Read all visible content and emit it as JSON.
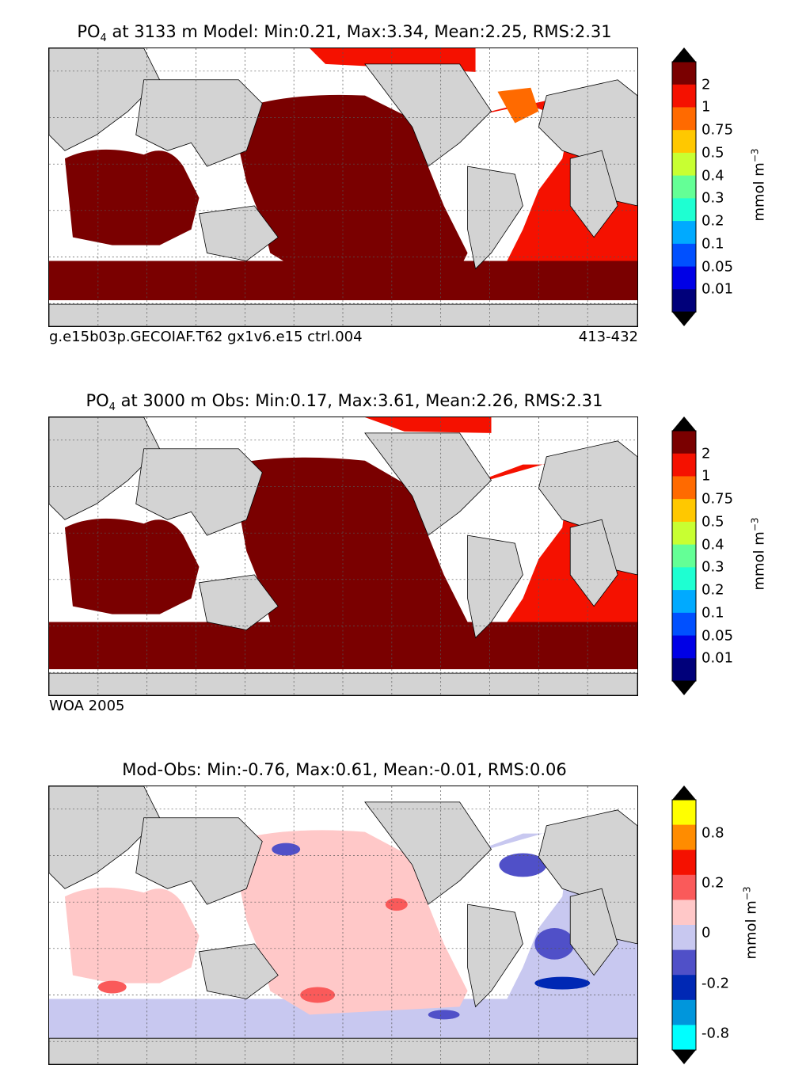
{
  "panels": [
    {
      "id": "model",
      "title_prefix": "PO",
      "title_sub": "4",
      "title_rest": " at 3133 m Model: Min:0.21, Max:3.34, Mean:2.25, RMS:2.31",
      "footer_left": "g.e15b03p.GECOIAF.T62 gx1v6.e15 ctrl.004",
      "footer_right": "413-432",
      "colorbar": {
        "labels": [
          "2",
          "1",
          "0.75",
          "0.5",
          "0.4",
          "0.3",
          "0.2",
          "0.1",
          "0.05",
          "0.01"
        ],
        "colors": [
          "#7a0000",
          "#f51100",
          "#ff6a00",
          "#ffc800",
          "#c8ff32",
          "#64ff96",
          "#1effd2",
          "#00aaff",
          "#0050ff",
          "#0000e6",
          "#00007a"
        ],
        "unit": "mmol m",
        "unit_exp": "−3"
      }
    },
    {
      "id": "obs",
      "title_prefix": "PO",
      "title_sub": "4",
      "title_rest": " at 3000 m Obs: Min:0.17, Max:3.61, Mean:2.26, RMS:2.31",
      "footer_left": "WOA 2005",
      "footer_right": "",
      "colorbar": {
        "labels": [
          "2",
          "1",
          "0.75",
          "0.5",
          "0.4",
          "0.3",
          "0.2",
          "0.1",
          "0.05",
          "0.01"
        ],
        "colors": [
          "#7a0000",
          "#f51100",
          "#ff6a00",
          "#ffc800",
          "#c8ff32",
          "#64ff96",
          "#1effd2",
          "#00aaff",
          "#0050ff",
          "#0000e6",
          "#00007a"
        ],
        "unit": "mmol m",
        "unit_exp": "−3"
      }
    },
    {
      "id": "diff",
      "title_prefix": "Mod-Obs: Min:-0.76, Max:0.61, Mean:-0.01, RMS:0.06",
      "title_sub": "",
      "title_rest": "",
      "footer_left": "",
      "footer_right": "",
      "colorbar": {
        "labels": [
          "0.8",
          "0.2",
          "0",
          "-0.2",
          "-0.8"
        ],
        "label_positions": [
          0.133,
          0.333,
          0.533,
          0.733,
          0.933
        ],
        "colors": [
          "#ffff00",
          "#ff8c00",
          "#f51100",
          "#fa5a5a",
          "#ffc8c8",
          "#c8c8f0",
          "#5050c8",
          "#0028b4",
          "#0096dc",
          "#00ffff"
        ],
        "unit": "mmol m",
        "unit_exp": "−3"
      }
    }
  ],
  "chart_data": [
    {
      "type": "heatmap",
      "title": "PO4 at 3133 m Model: Min:0.21, Max:3.34, Mean:2.25, RMS:2.31",
      "stats": {
        "min": 0.21,
        "max": 3.34,
        "mean": 2.25,
        "rms": 2.31
      },
      "levels": [
        0.01,
        0.05,
        0.1,
        0.2,
        0.3,
        0.4,
        0.5,
        0.75,
        1,
        2
      ],
      "unit": "mmol m^-3",
      "grid": true
    },
    {
      "type": "heatmap",
      "title": "PO4 at 3000 m Obs: Min:0.17, Max:3.61, Mean:2.26, RMS:2.31",
      "stats": {
        "min": 0.17,
        "max": 3.61,
        "mean": 2.26,
        "rms": 2.31
      },
      "levels": [
        0.01,
        0.05,
        0.1,
        0.2,
        0.3,
        0.4,
        0.5,
        0.75,
        1,
        2
      ],
      "unit": "mmol m^-3",
      "grid": true
    },
    {
      "type": "heatmap",
      "title": "Mod-Obs: Min:-0.76, Max:0.61, Mean:-0.01, RMS:0.06",
      "stats": {
        "min": -0.76,
        "max": 0.61,
        "mean": -0.01,
        "rms": 0.06
      },
      "levels": [
        -0.8,
        -0.2,
        0,
        0.2,
        0.8
      ],
      "unit": "mmol m^-3",
      "grid": true
    }
  ]
}
